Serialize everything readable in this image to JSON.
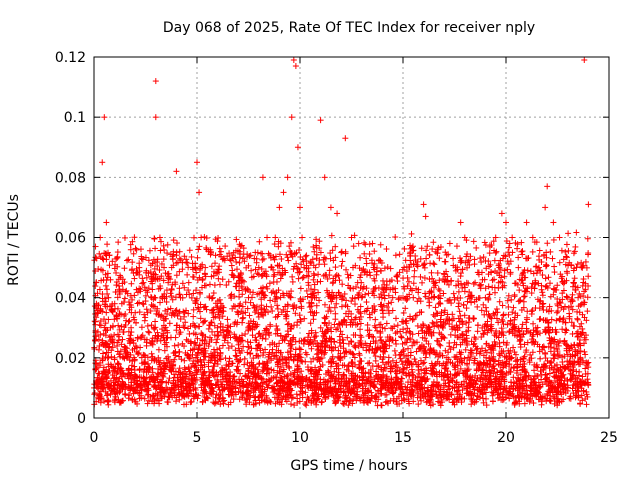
{
  "chart_data": {
    "type": "scatter",
    "title": "Day 068 of 2025, Rate Of TEC Index for receiver nply",
    "xlabel": "GPS time / hours",
    "ylabel": "ROTI / TECUs",
    "xlim": [
      0,
      25
    ],
    "ylim": [
      0,
      0.12
    ],
    "x_ticks": [
      "0",
      "5",
      "10",
      "15",
      "20",
      "25"
    ],
    "y_ticks": [
      "0",
      "0.02",
      "0.04",
      "0.06",
      "0.08",
      "0.1",
      "0.12"
    ],
    "grid": true,
    "marker": "plus",
    "color": "#ff0000",
    "series": [
      {
        "x": [
          0.1,
          0.2,
          0.3,
          0.4,
          0.5,
          0.6,
          0.7,
          0.8,
          0.9,
          1.0,
          1.2,
          1.4,
          1.6,
          1.8,
          2.0,
          2.2,
          2.4,
          2.6,
          2.8,
          3.0,
          3.0,
          3.2,
          3.4,
          3.6,
          3.8,
          4.0,
          4.2,
          4.4,
          4.6,
          4.8,
          5.0,
          5.1,
          5.2,
          5.4,
          5.6,
          5.8,
          6.0,
          6.5,
          7.0,
          7.5,
          8.0,
          8.2,
          8.4,
          8.6,
          8.8,
          9.0,
          9.2,
          9.4,
          9.6,
          9.7,
          9.8,
          9.9,
          10.0,
          10.1,
          10.2,
          10.4,
          10.6,
          10.8,
          11.0,
          11.2,
          11.5,
          11.8,
          12.0,
          12.2,
          12.5,
          12.8,
          13.0,
          13.5,
          14.0,
          14.5,
          15.0,
          15.5,
          16.0,
          16.1,
          16.5,
          17.0,
          17.5,
          17.8,
          18.0,
          18.5,
          19.0,
          19.5,
          19.8,
          20.0,
          20.3,
          20.6,
          21.0,
          21.3,
          21.6,
          21.9,
          22.0,
          22.3,
          22.6,
          23.0,
          23.3,
          23.5,
          23.8,
          24.0,
          0.5,
          2.5,
          4.5,
          6.5,
          8.5,
          10.5,
          12.5,
          14.5,
          16.5,
          18.5,
          20.5,
          22.5,
          1.5,
          3.5,
          5.5,
          7.5,
          9.5,
          11.5,
          13.5,
          15.5,
          17.5,
          19.5,
          21.5,
          23.5
        ],
        "y": [
          0.045,
          0.035,
          0.06,
          0.085,
          0.1,
          0.065,
          0.04,
          0.03,
          0.025,
          0.02,
          0.018,
          0.015,
          0.02,
          0.03,
          0.035,
          0.05,
          0.045,
          0.035,
          0.04,
          0.112,
          0.1,
          0.06,
          0.05,
          0.045,
          0.035,
          0.082,
          0.04,
          0.035,
          0.045,
          0.05,
          0.085,
          0.075,
          0.06,
          0.05,
          0.04,
          0.035,
          0.03,
          0.025,
          0.035,
          0.04,
          0.05,
          0.08,
          0.06,
          0.05,
          0.06,
          0.07,
          0.075,
          0.08,
          0.1,
          0.119,
          0.117,
          0.09,
          0.07,
          0.06,
          0.05,
          0.045,
          0.04,
          0.035,
          0.099,
          0.08,
          0.07,
          0.068,
          0.055,
          0.093,
          0.06,
          0.045,
          0.04,
          0.035,
          0.03,
          0.04,
          0.04,
          0.04,
          0.071,
          0.067,
          0.04,
          0.035,
          0.04,
          0.065,
          0.06,
          0.045,
          0.04,
          0.06,
          0.068,
          0.065,
          0.06,
          0.05,
          0.065,
          0.06,
          0.05,
          0.07,
          0.077,
          0.065,
          0.06,
          0.04,
          0.045,
          0.04,
          0.119,
          0.071,
          0.015,
          0.012,
          0.01,
          0.012,
          0.015,
          0.012,
          0.014,
          0.01,
          0.012,
          0.014,
          0.012,
          0.01,
          0.008,
          0.01,
          0.012,
          0.014,
          0.012,
          0.01,
          0.012,
          0.014,
          0.01,
          0.012,
          0.014,
          0.01
        ]
      }
    ]
  }
}
